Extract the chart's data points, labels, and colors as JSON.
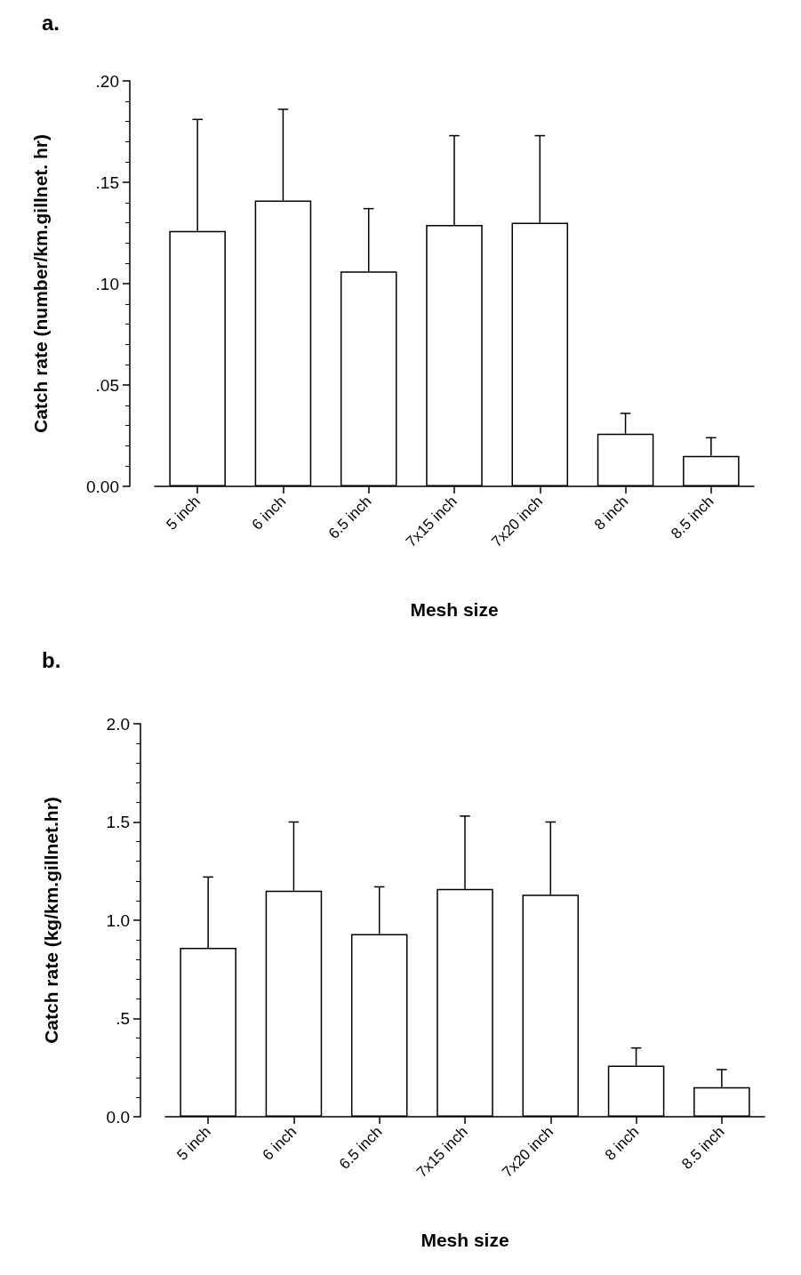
{
  "chart_data": [
    {
      "type": "bar",
      "title": "a.",
      "xlabel": "Mesh size",
      "ylabel": "Catch rate (number/km.gillnet. hr)",
      "categories": [
        "5 inch",
        "6 inch",
        "6.5 inch",
        "7x15 inch",
        "7x20 inch",
        "8 inch",
        "8.5 inch"
      ],
      "series": [
        {
          "color": "#ffffff",
          "values": [
            0.126,
            0.141,
            0.106,
            0.129,
            0.13,
            0.026,
            0.015
          ],
          "errors": [
            [
              0.126,
              0.181
            ],
            [
              0.141,
              0.186
            ],
            [
              0.106,
              0.137
            ],
            [
              0.129,
              0.173
            ],
            [
              0.13,
              0.173
            ],
            [
              0.026,
              0.036
            ],
            [
              0.015,
              0.024
            ]
          ]
        }
      ],
      "ylim": [
        0,
        0.2
      ],
      "yticks": [
        {
          "value": 0,
          "label": "0.00"
        },
        {
          "value": 0.05,
          "label": ".05"
        },
        {
          "value": 0.1,
          "label": ".10"
        },
        {
          "value": 0.15,
          "label": ".15"
        },
        {
          "value": 0.2,
          "label": ".20"
        }
      ]
    },
    {
      "type": "bar",
      "title": "b.",
      "xlabel": "Mesh size",
      "ylabel": "Catch rate (kg/km.gillnet.hr)",
      "categories": [
        "5 inch",
        "6 inch",
        "6.5 inch",
        "7x15 inch",
        "7x20 inch",
        "8 inch",
        "8.5 inch"
      ],
      "series": [
        {
          "color": "#ffffff",
          "values": [
            0.86,
            1.15,
            0.93,
            1.16,
            1.13,
            0.26,
            0.15
          ],
          "errors": [
            [
              0.86,
              1.22
            ],
            [
              1.15,
              1.5
            ],
            [
              0.93,
              1.17
            ],
            [
              1.16,
              1.53
            ],
            [
              1.13,
              1.5
            ],
            [
              0.26,
              0.35
            ],
            [
              0.15,
              0.24
            ]
          ]
        }
      ],
      "ylim": [
        0,
        2
      ],
      "yticks": [
        {
          "value": 0,
          "label": "0.0"
        },
        {
          "value": 0.5,
          "label": ".5"
        },
        {
          "value": 1,
          "label": "1.0"
        },
        {
          "value": 1.5,
          "label": "1.5"
        },
        {
          "value": 2,
          "label": "2.0"
        }
      ]
    }
  ]
}
